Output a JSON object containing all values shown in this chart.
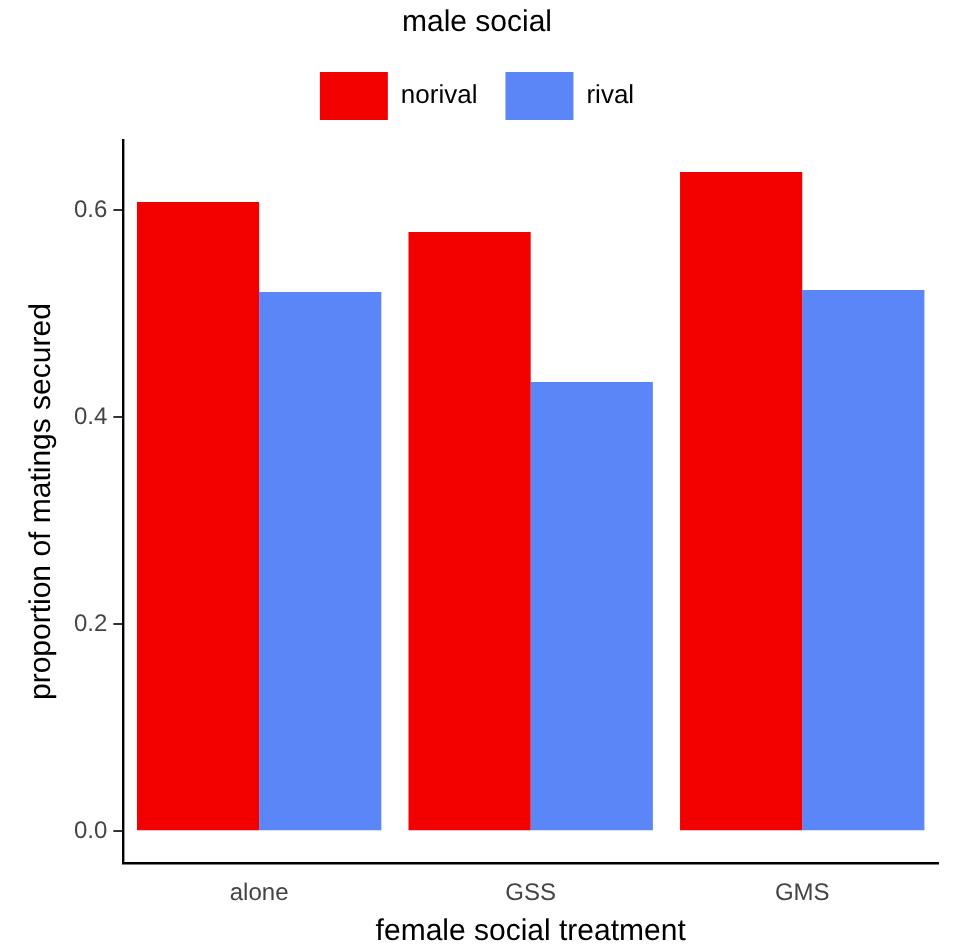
{
  "chart_data": {
    "type": "bar",
    "xlabel": "female social treatment",
    "ylabel": "proportion of matings secured",
    "legend_title": "male social",
    "legend": "top",
    "categories": [
      "alone",
      "GSS",
      "GMS"
    ],
    "series": [
      {
        "name": "norival",
        "color": "#f20000",
        "values": [
          0.608,
          0.579,
          0.637
        ]
      },
      {
        "name": "rival",
        "color": "#5b86f7",
        "values": [
          0.521,
          0.434,
          0.523
        ]
      }
    ],
    "ylim": [
      -0.031,
      0.668
    ],
    "yticks": [
      {
        "value": 0,
        "label": "0.0"
      },
      0.2,
      0.4,
      0.6
    ],
    "grid": false
  }
}
